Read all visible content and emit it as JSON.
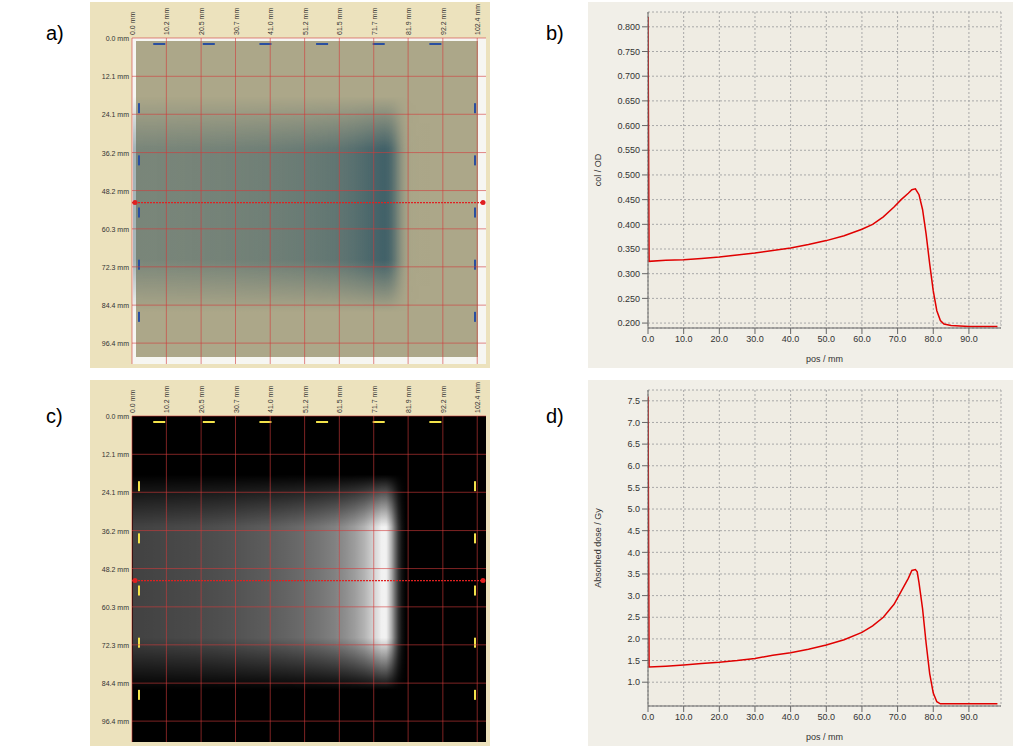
{
  "chart_data": [
    {
      "type": "image",
      "title": "a)",
      "xlim": [
        0,
        105
      ],
      "ylim": [
        0,
        103
      ],
      "profile_y": 52,
      "grid": true,
      "xticks": [
        {
          "value": 0,
          "label": "0.0 mm"
        },
        {
          "value": 10.2,
          "label": "10.2 mm"
        },
        {
          "value": 20.5,
          "label": "20.5 mm"
        },
        {
          "value": 30.7,
          "label": "30.7 mm"
        },
        {
          "value": 41.0,
          "label": "41.0 mm"
        },
        {
          "value": 51.2,
          "label": "51.2 mm"
        },
        {
          "value": 61.5,
          "label": "61.5 mm"
        },
        {
          "value": 71.7,
          "label": "71.7 mm"
        },
        {
          "value": 81.9,
          "label": "81.9 mm"
        },
        {
          "value": 92.2,
          "label": "92.2 mm"
        },
        {
          "value": 102.4,
          "label": "102.4 mm"
        }
      ],
      "yticks": [
        {
          "value": 0,
          "label": "0.0 mm"
        },
        {
          "value": 12.1,
          "label": "12.1 mm"
        },
        {
          "value": 24.1,
          "label": "24.1 mm"
        },
        {
          "value": 36.2,
          "label": "36.2 mm"
        },
        {
          "value": 48.2,
          "label": "48.2 mm"
        },
        {
          "value": 60.3,
          "label": "60.3 mm"
        },
        {
          "value": 72.3,
          "label": "72.3 mm"
        },
        {
          "value": 84.4,
          "label": "84.4 mm"
        },
        {
          "value": 96.4,
          "label": "96.4 mm"
        }
      ]
    },
    {
      "type": "line",
      "title": "b)",
      "x_label": "pos / mm",
      "y_label": "col / OD",
      "grid": true,
      "color": "#e00000",
      "xlim": [
        0,
        99
      ],
      "ylim": [
        0.19,
        0.83
      ],
      "xticks": [
        {
          "value": 0,
          "label": "0.0"
        },
        {
          "value": 10,
          "label": "10.0"
        },
        {
          "value": 20,
          "label": "20.0"
        },
        {
          "value": 30,
          "label": "30.0"
        },
        {
          "value": 40,
          "label": "40.0"
        },
        {
          "value": 50,
          "label": "50.0"
        },
        {
          "value": 60,
          "label": "60.0"
        },
        {
          "value": 70,
          "label": "70.0"
        },
        {
          "value": 80,
          "label": "80.0"
        },
        {
          "value": 90,
          "label": "90.0"
        }
      ],
      "yticks": [
        {
          "value": 0.2,
          "label": "0.200"
        },
        {
          "value": 0.25,
          "label": "0.250"
        },
        {
          "value": 0.3,
          "label": "0.300"
        },
        {
          "value": 0.35,
          "label": "0.350"
        },
        {
          "value": 0.4,
          "label": "0.400"
        },
        {
          "value": 0.45,
          "label": "0.450"
        },
        {
          "value": 0.5,
          "label": "0.500"
        },
        {
          "value": 0.55,
          "label": "0.550"
        },
        {
          "value": 0.6,
          "label": "0.600"
        },
        {
          "value": 0.65,
          "label": "0.650"
        },
        {
          "value": 0.7,
          "label": "0.700"
        },
        {
          "value": 0.75,
          "label": "0.750"
        },
        {
          "value": 0.8,
          "label": "0.800"
        }
      ],
      "x": [
        0,
        0.3,
        5,
        10,
        15,
        20,
        25,
        30,
        35,
        40,
        45,
        50,
        55,
        60,
        63,
        66,
        69,
        71,
        73,
        74,
        75,
        76,
        77,
        78,
        79,
        80,
        81,
        82,
        83,
        85,
        90,
        98
      ],
      "values": [
        0.82,
        0.325,
        0.327,
        0.328,
        0.331,
        0.334,
        0.338,
        0.342,
        0.347,
        0.352,
        0.359,
        0.367,
        0.377,
        0.39,
        0.4,
        0.415,
        0.435,
        0.45,
        0.463,
        0.47,
        0.472,
        0.46,
        0.43,
        0.38,
        0.32,
        0.265,
        0.225,
        0.205,
        0.198,
        0.195,
        0.193,
        0.193
      ]
    },
    {
      "type": "image",
      "title": "c)",
      "xlim": [
        0,
        105
      ],
      "ylim": [
        0,
        103
      ],
      "profile_y": 52,
      "grid": true,
      "xticks": [
        {
          "value": 0,
          "label": "0.0 mm"
        },
        {
          "value": 10.2,
          "label": "10.2 mm"
        },
        {
          "value": 20.5,
          "label": "20.5 mm"
        },
        {
          "value": 30.7,
          "label": "30.7 mm"
        },
        {
          "value": 41.0,
          "label": "41.0 mm"
        },
        {
          "value": 51.2,
          "label": "51.2 mm"
        },
        {
          "value": 61.5,
          "label": "61.5 mm"
        },
        {
          "value": 71.7,
          "label": "71.7 mm"
        },
        {
          "value": 81.9,
          "label": "81.9 mm"
        },
        {
          "value": 92.2,
          "label": "92.2 mm"
        },
        {
          "value": 102.4,
          "label": "102.4 mm"
        }
      ],
      "yticks": [
        {
          "value": 0,
          "label": "0.0 mm"
        },
        {
          "value": 12.1,
          "label": "12.1 mm"
        },
        {
          "value": 24.1,
          "label": "24.1 mm"
        },
        {
          "value": 36.2,
          "label": "36.2 mm"
        },
        {
          "value": 48.2,
          "label": "48.2 mm"
        },
        {
          "value": 60.3,
          "label": "60.3 mm"
        },
        {
          "value": 72.3,
          "label": "72.3 mm"
        },
        {
          "value": 84.4,
          "label": "84.4 mm"
        },
        {
          "value": 96.4,
          "label": "96.4 mm"
        }
      ]
    },
    {
      "type": "line",
      "title": "d)",
      "x_label": "pos / mm",
      "y_label": "Absorbed dose / Gy",
      "grid": true,
      "color": "#e00000",
      "xlim": [
        0,
        99
      ],
      "ylim": [
        0.45,
        7.75
      ],
      "xticks": [
        {
          "value": 0,
          "label": "0.0"
        },
        {
          "value": 10,
          "label": "10.0"
        },
        {
          "value": 20,
          "label": "20.0"
        },
        {
          "value": 30,
          "label": "30.0"
        },
        {
          "value": 40,
          "label": "40.0"
        },
        {
          "value": 50,
          "label": "50.0"
        },
        {
          "value": 60,
          "label": "60.0"
        },
        {
          "value": 70,
          "label": "70.0"
        },
        {
          "value": 80,
          "label": "80.0"
        },
        {
          "value": 90,
          "label": "90.0"
        }
      ],
      "yticks": [
        {
          "value": 1,
          "label": "1.0"
        },
        {
          "value": 1.5,
          "label": "1.5"
        },
        {
          "value": 2,
          "label": "2.0"
        },
        {
          "value": 2.5,
          "label": "2.5"
        },
        {
          "value": 3,
          "label": "3.0"
        },
        {
          "value": 3.5,
          "label": "3.5"
        },
        {
          "value": 4,
          "label": "4.0"
        },
        {
          "value": 4.5,
          "label": "4.5"
        },
        {
          "value": 5,
          "label": "5.0"
        },
        {
          "value": 5.5,
          "label": "5.5"
        },
        {
          "value": 6,
          "label": "6.0"
        },
        {
          "value": 6.5,
          "label": "6.5"
        },
        {
          "value": 7,
          "label": "7.0"
        },
        {
          "value": 7.5,
          "label": "7.5"
        }
      ],
      "x": [
        0,
        0.3,
        5,
        10,
        15,
        20,
        25,
        30,
        35,
        40,
        45,
        50,
        55,
        60,
        63,
        66,
        69,
        71,
        73,
        74,
        75,
        75.5,
        76,
        77,
        78,
        79,
        80,
        81,
        82,
        85,
        90,
        98
      ],
      "values": [
        7.6,
        1.35,
        1.37,
        1.4,
        1.43,
        1.46,
        1.5,
        1.55,
        1.62,
        1.68,
        1.76,
        1.86,
        1.98,
        2.15,
        2.3,
        2.5,
        2.8,
        3.1,
        3.4,
        3.58,
        3.6,
        3.55,
        3.3,
        2.7,
        1.9,
        1.2,
        0.75,
        0.55,
        0.5,
        0.5,
        0.5,
        0.5
      ]
    }
  ]
}
